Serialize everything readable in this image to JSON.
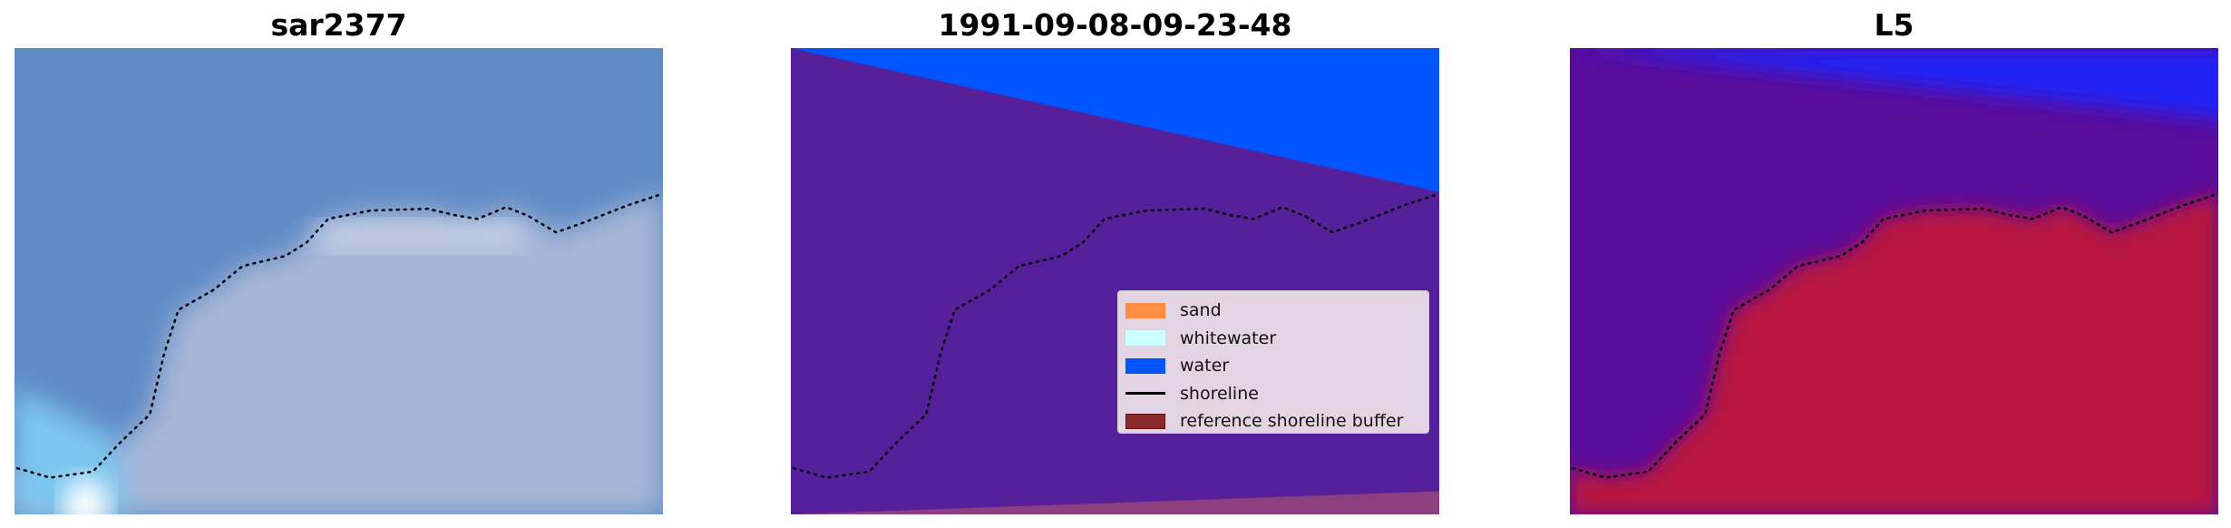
{
  "panels": [
    {
      "title": "sar2377"
    },
    {
      "title": "1991-09-08-09-23-48"
    },
    {
      "title": "L5"
    }
  ],
  "legend": {
    "items": [
      {
        "label": "sand",
        "color": "#ff8c40",
        "kind": "patch"
      },
      {
        "label": "whitewater",
        "color": "#ccffff",
        "kind": "patch"
      },
      {
        "label": "water",
        "color": "#0055ff",
        "kind": "patch"
      },
      {
        "label": "shoreline",
        "color": "#000000",
        "kind": "line"
      },
      {
        "label": "reference shoreline buffer",
        "color": "#8b2a2e",
        "kind": "patch"
      }
    ]
  },
  "colors": {
    "classified_water": "#0055ff",
    "classified_other": "#55209a",
    "classified_sand_overlay": "#8e3f80"
  }
}
